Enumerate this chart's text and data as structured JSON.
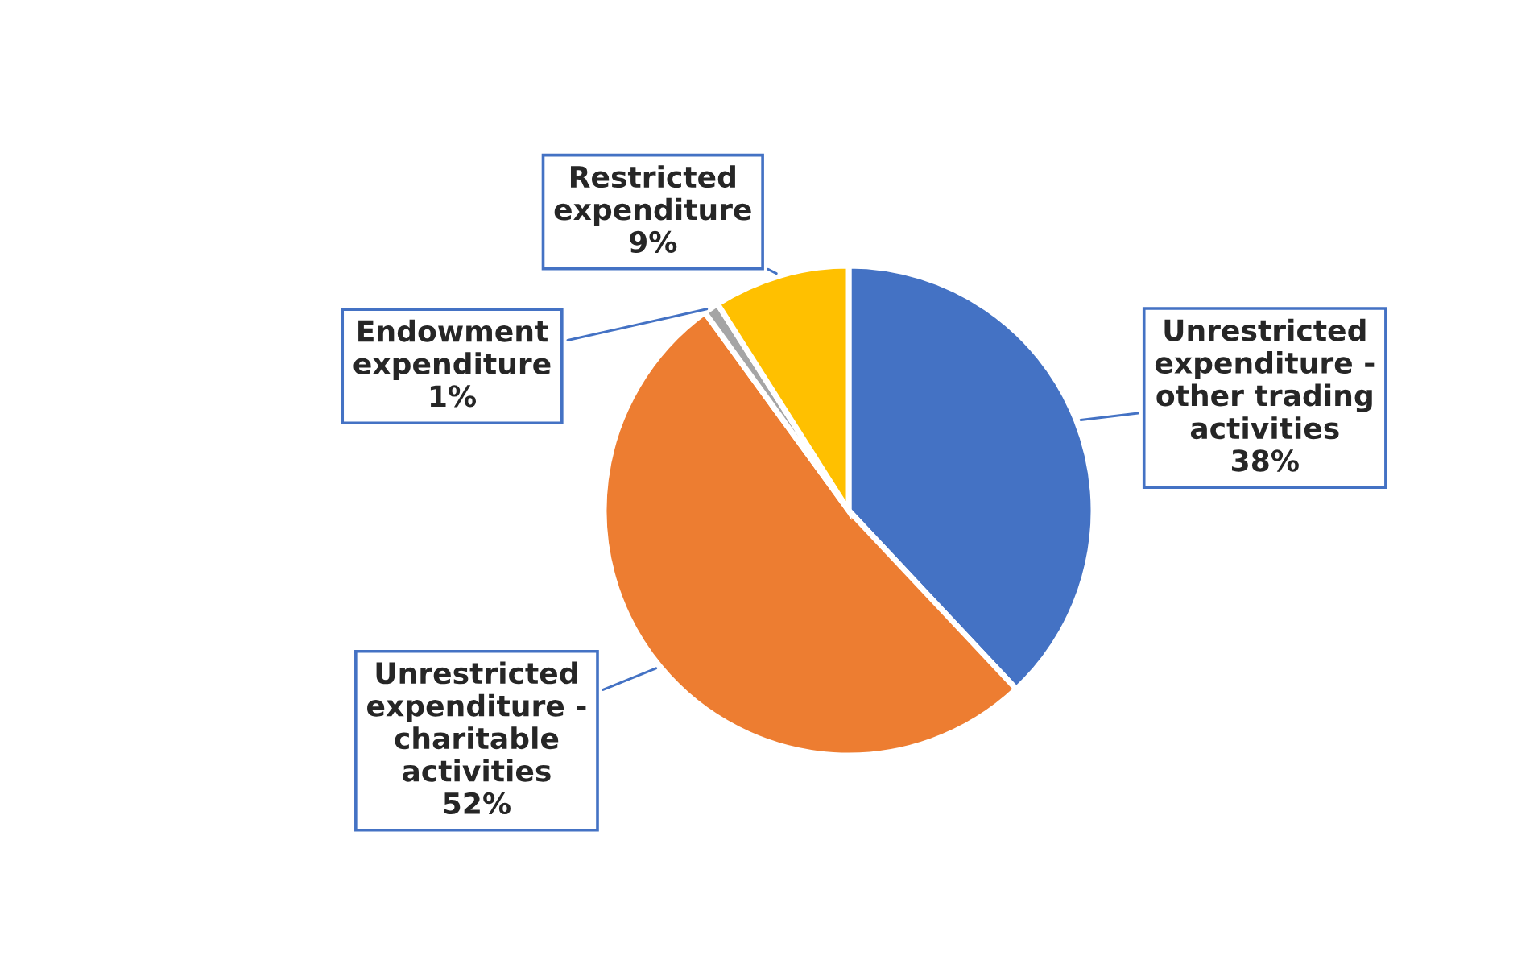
{
  "chart_data": {
    "type": "pie",
    "categories": [
      "Unrestricted\nexpenditure -\nother trading\nactivities",
      "Unrestricted\nexpenditure -\ncharitable\nactivities",
      "Endowment\nexpenditure\n",
      "Restricted\nexpenditure"
    ],
    "values": [
      38,
      52,
      1,
      9
    ],
    "value_labels": [
      "38%",
      "52%",
      "1%",
      "9%"
    ],
    "colors": [
      "#4472c4",
      "#ed7d31",
      "#a5a5a5",
      "#ffc000"
    ],
    "legend": false
  }
}
